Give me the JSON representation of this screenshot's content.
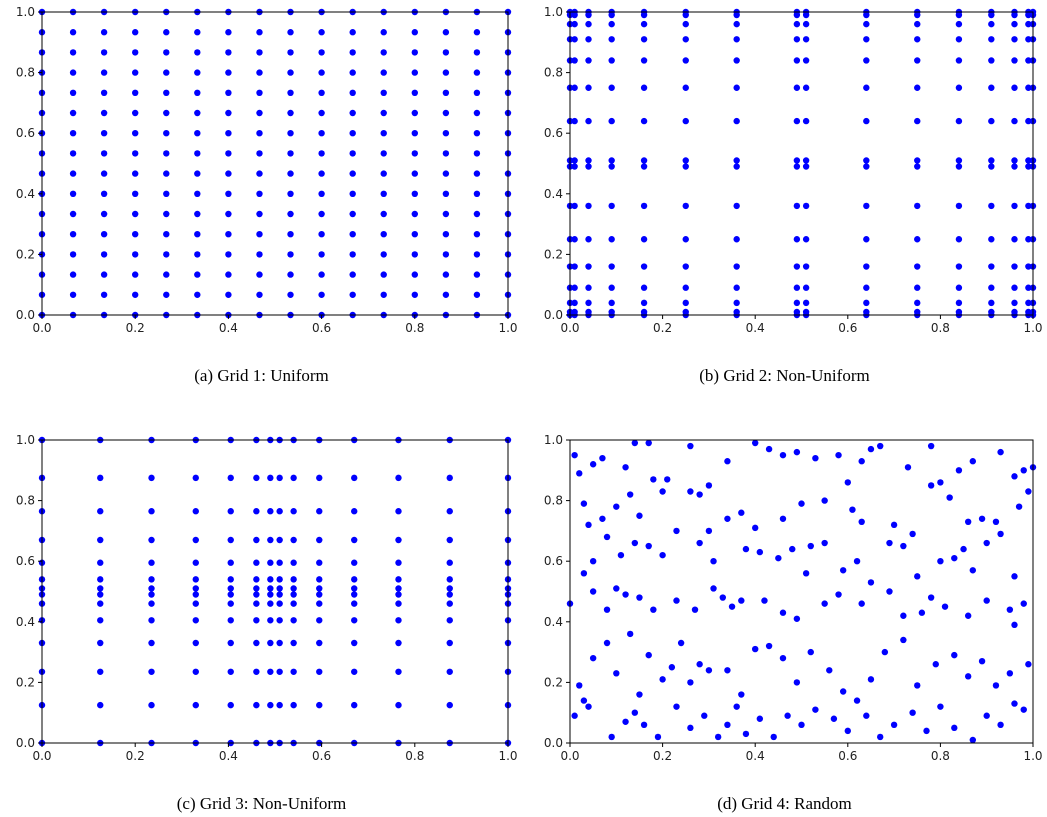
{
  "chart_data": [
    {
      "type": "scatter",
      "caption": "(a) Grid 1: Uniform",
      "xlim": [
        0,
        1
      ],
      "ylim": [
        0,
        1
      ],
      "xticks": [
        "0.0",
        "0.2",
        "0.4",
        "0.6",
        "0.8",
        "1.0"
      ],
      "yticks": [
        "0.0",
        "0.2",
        "0.4",
        "0.6",
        "0.8",
        "1.0"
      ],
      "grid": false,
      "marker_color": "#0000ff",
      "grid_x": [
        0,
        0.0667,
        0.1333,
        0.2,
        0.2667,
        0.3333,
        0.4,
        0.4667,
        0.5333,
        0.6,
        0.6667,
        0.7333,
        0.8,
        0.8667,
        0.9333,
        1.0
      ],
      "grid_y": [
        0,
        0.0667,
        0.1333,
        0.2,
        0.2667,
        0.3333,
        0.4,
        0.4667,
        0.5333,
        0.6,
        0.6667,
        0.7333,
        0.8,
        0.8667,
        0.9333,
        1.0
      ]
    },
    {
      "type": "scatter",
      "caption": "(b) Grid 2: Non-Uniform",
      "xlim": [
        0,
        1
      ],
      "ylim": [
        0,
        1
      ],
      "xticks": [
        "0.0",
        "0.2",
        "0.4",
        "0.6",
        "0.8",
        "1.0"
      ],
      "yticks": [
        "0.0",
        "0.2",
        "0.4",
        "0.6",
        "0.8",
        "1.0"
      ],
      "grid": false,
      "marker_color": "#0000ff",
      "grid_x": [
        0,
        0.01,
        0.04,
        0.09,
        0.16,
        0.25,
        0.36,
        0.49,
        0.51,
        0.64,
        0.75,
        0.84,
        0.91,
        0.96,
        0.99,
        1.0
      ],
      "grid_y": [
        0,
        0.01,
        0.04,
        0.09,
        0.16,
        0.25,
        0.36,
        0.49,
        0.51,
        0.64,
        0.75,
        0.84,
        0.91,
        0.96,
        0.99,
        1.0
      ]
    },
    {
      "type": "scatter",
      "caption": "(c) Grid 3: Non-Uniform",
      "xlim": [
        0,
        1
      ],
      "ylim": [
        0,
        1
      ],
      "xticks": [
        "0.0",
        "0.2",
        "0.4",
        "0.6",
        "0.8",
        "1.0"
      ],
      "yticks": [
        "0.0",
        "0.2",
        "0.4",
        "0.6",
        "0.8",
        "1.0"
      ],
      "grid": false,
      "marker_color": "#0000ff",
      "grid_x": [
        0,
        0.125,
        0.235,
        0.33,
        0.405,
        0.46,
        0.49,
        0.51,
        0.54,
        0.595,
        0.67,
        0.765,
        0.875,
        1.0
      ],
      "grid_y": [
        0,
        0.125,
        0.235,
        0.33,
        0.405,
        0.46,
        0.49,
        0.51,
        0.54,
        0.595,
        0.67,
        0.765,
        0.875,
        1.0
      ]
    },
    {
      "type": "scatter",
      "caption": "(d) Grid 4: Random",
      "xlim": [
        0,
        1
      ],
      "ylim": [
        0,
        1
      ],
      "xticks": [
        "0.0",
        "0.2",
        "0.4",
        "0.6",
        "0.8",
        "1.0"
      ],
      "yticks": [
        "0.0",
        "0.2",
        "0.4",
        "0.6",
        "0.8",
        "1.0"
      ],
      "grid": false,
      "marker_color": "#0000ff",
      "points": [
        [
          0.01,
          0.95
        ],
        [
          0.02,
          0.89
        ],
        [
          0.05,
          0.92
        ],
        [
          0.07,
          0.94
        ],
        [
          0.12,
          0.91
        ],
        [
          0.14,
          0.99
        ],
        [
          0.17,
          0.99
        ],
        [
          0.21,
          0.87
        ],
        [
          0.26,
          0.98
        ],
        [
          0.3,
          0.85
        ],
        [
          0.34,
          0.93
        ],
        [
          0.4,
          0.99
        ],
        [
          0.43,
          0.97
        ],
        [
          0.46,
          0.95
        ],
        [
          0.49,
          0.96
        ],
        [
          0.53,
          0.94
        ],
        [
          0.58,
          0.95
        ],
        [
          0.63,
          0.93
        ],
        [
          0.65,
          0.97
        ],
        [
          0.67,
          0.98
        ],
        [
          0.73,
          0.91
        ],
        [
          0.78,
          0.98
        ],
        [
          0.84,
          0.9
        ],
        [
          0.87,
          0.93
        ],
        [
          0.93,
          0.96
        ],
        [
          0.96,
          0.88
        ],
        [
          0.98,
          0.9
        ],
        [
          1.0,
          0.91
        ],
        [
          0.03,
          0.79
        ],
        [
          0.04,
          0.72
        ],
        [
          0.07,
          0.74
        ],
        [
          0.1,
          0.78
        ],
        [
          0.13,
          0.82
        ],
        [
          0.15,
          0.75
        ],
        [
          0.18,
          0.87
        ],
        [
          0.2,
          0.83
        ],
        [
          0.26,
          0.83
        ],
        [
          0.28,
          0.82
        ],
        [
          0.3,
          0.7
        ],
        [
          0.34,
          0.74
        ],
        [
          0.37,
          0.76
        ],
        [
          0.4,
          0.71
        ],
        [
          0.46,
          0.74
        ],
        [
          0.5,
          0.79
        ],
        [
          0.55,
          0.8
        ],
        [
          0.6,
          0.86
        ],
        [
          0.61,
          0.77
        ],
        [
          0.63,
          0.73
        ],
        [
          0.7,
          0.72
        ],
        [
          0.74,
          0.69
        ],
        [
          0.78,
          0.85
        ],
        [
          0.8,
          0.86
        ],
        [
          0.82,
          0.81
        ],
        [
          0.86,
          0.73
        ],
        [
          0.89,
          0.74
        ],
        [
          0.92,
          0.73
        ],
        [
          0.97,
          0.78
        ],
        [
          0.99,
          0.83
        ],
        [
          0.03,
          0.56
        ],
        [
          0.05,
          0.6
        ],
        [
          0.08,
          0.68
        ],
        [
          0.11,
          0.62
        ],
        [
          0.14,
          0.66
        ],
        [
          0.17,
          0.65
        ],
        [
          0.2,
          0.62
        ],
        [
          0.23,
          0.7
        ],
        [
          0.28,
          0.66
        ],
        [
          0.31,
          0.6
        ],
        [
          0.38,
          0.64
        ],
        [
          0.41,
          0.63
        ],
        [
          0.45,
          0.61
        ],
        [
          0.48,
          0.64
        ],
        [
          0.51,
          0.56
        ],
        [
          0.52,
          0.65
        ],
        [
          0.55,
          0.66
        ],
        [
          0.59,
          0.57
        ],
        [
          0.62,
          0.6
        ],
        [
          0.65,
          0.53
        ],
        [
          0.69,
          0.66
        ],
        [
          0.72,
          0.65
        ],
        [
          0.75,
          0.55
        ],
        [
          0.8,
          0.6
        ],
        [
          0.83,
          0.61
        ],
        [
          0.85,
          0.64
        ],
        [
          0.87,
          0.57
        ],
        [
          0.9,
          0.66
        ],
        [
          0.93,
          0.69
        ],
        [
          0.96,
          0.55
        ],
        [
          0.0,
          0.46
        ],
        [
          0.05,
          0.5
        ],
        [
          0.08,
          0.44
        ],
        [
          0.1,
          0.51
        ],
        [
          0.12,
          0.49
        ],
        [
          0.15,
          0.48
        ],
        [
          0.18,
          0.44
        ],
        [
          0.23,
          0.47
        ],
        [
          0.27,
          0.44
        ],
        [
          0.31,
          0.51
        ],
        [
          0.33,
          0.48
        ],
        [
          0.35,
          0.45
        ],
        [
          0.37,
          0.47
        ],
        [
          0.42,
          0.47
        ],
        [
          0.46,
          0.43
        ],
        [
          0.49,
          0.41
        ],
        [
          0.55,
          0.46
        ],
        [
          0.58,
          0.49
        ],
        [
          0.63,
          0.46
        ],
        [
          0.69,
          0.5
        ],
        [
          0.72,
          0.42
        ],
        [
          0.76,
          0.43
        ],
        [
          0.78,
          0.48
        ],
        [
          0.81,
          0.45
        ],
        [
          0.86,
          0.42
        ],
        [
          0.9,
          0.47
        ],
        [
          0.95,
          0.44
        ],
        [
          0.96,
          0.39
        ],
        [
          0.98,
          0.46
        ],
        [
          0.02,
          0.19
        ],
        [
          0.03,
          0.14
        ],
        [
          0.05,
          0.28
        ],
        [
          0.08,
          0.33
        ],
        [
          0.1,
          0.23
        ],
        [
          0.13,
          0.36
        ],
        [
          0.15,
          0.16
        ],
        [
          0.17,
          0.29
        ],
        [
          0.2,
          0.21
        ],
        [
          0.22,
          0.25
        ],
        [
          0.24,
          0.33
        ],
        [
          0.26,
          0.2
        ],
        [
          0.28,
          0.26
        ],
        [
          0.3,
          0.24
        ],
        [
          0.34,
          0.24
        ],
        [
          0.37,
          0.16
        ],
        [
          0.4,
          0.31
        ],
        [
          0.43,
          0.32
        ],
        [
          0.46,
          0.28
        ],
        [
          0.49,
          0.2
        ],
        [
          0.52,
          0.3
        ],
        [
          0.56,
          0.24
        ],
        [
          0.59,
          0.17
        ],
        [
          0.62,
          0.14
        ],
        [
          0.65,
          0.21
        ],
        [
          0.68,
          0.3
        ],
        [
          0.72,
          0.34
        ],
        [
          0.75,
          0.19
        ],
        [
          0.79,
          0.26
        ],
        [
          0.83,
          0.29
        ],
        [
          0.86,
          0.22
        ],
        [
          0.89,
          0.27
        ],
        [
          0.92,
          0.19
        ],
        [
          0.95,
          0.23
        ],
        [
          0.99,
          0.26
        ],
        [
          0.01,
          0.09
        ],
        [
          0.04,
          0.12
        ],
        [
          0.09,
          0.02
        ],
        [
          0.12,
          0.07
        ],
        [
          0.14,
          0.1
        ],
        [
          0.16,
          0.06
        ],
        [
          0.19,
          0.02
        ],
        [
          0.23,
          0.12
        ],
        [
          0.26,
          0.05
        ],
        [
          0.29,
          0.09
        ],
        [
          0.32,
          0.02
        ],
        [
          0.34,
          0.06
        ],
        [
          0.36,
          0.12
        ],
        [
          0.38,
          0.03
        ],
        [
          0.41,
          0.08
        ],
        [
          0.44,
          0.02
        ],
        [
          0.47,
          0.09
        ],
        [
          0.5,
          0.06
        ],
        [
          0.53,
          0.11
        ],
        [
          0.57,
          0.08
        ],
        [
          0.6,
          0.04
        ],
        [
          0.64,
          0.09
        ],
        [
          0.67,
          0.02
        ],
        [
          0.7,
          0.06
        ],
        [
          0.74,
          0.1
        ],
        [
          0.77,
          0.04
        ],
        [
          0.8,
          0.12
        ],
        [
          0.83,
          0.05
        ],
        [
          0.87,
          0.01
        ],
        [
          0.9,
          0.09
        ],
        [
          0.93,
          0.06
        ],
        [
          0.96,
          0.13
        ],
        [
          0.98,
          0.11
        ]
      ]
    }
  ]
}
